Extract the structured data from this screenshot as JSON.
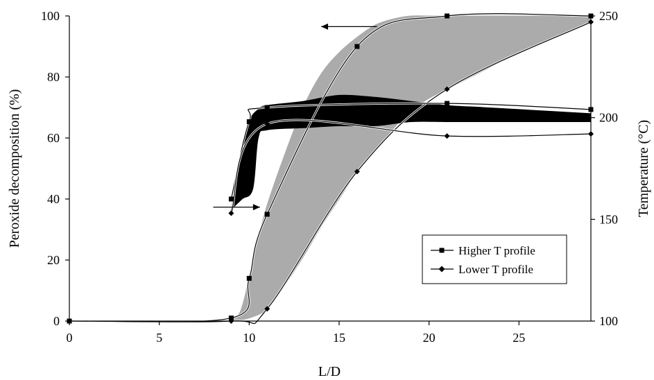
{
  "chart_data": {
    "type": "line",
    "title": "",
    "xlabel": "L/D",
    "ylabel": "Peroxide decomposition (%)",
    "y2label": "Temperature (°C)",
    "xlim": [
      0,
      29
    ],
    "ylim": [
      0,
      100
    ],
    "y2lim": [
      100,
      250
    ],
    "xticks": [
      "0",
      "5",
      "10",
      "15",
      "20",
      "25"
    ],
    "yticks": [
      "0",
      "20",
      "40",
      "60",
      "80",
      "100"
    ],
    "y2ticks": [
      "100",
      "150",
      "200",
      "250"
    ],
    "grid": false,
    "legend_position": "right-middle",
    "legend": {
      "higher": "Higher T profile",
      "lower": "Lower T profile"
    },
    "series": [
      {
        "name": "Higher T profile",
        "quantity": "peroxide decomposition",
        "axis": "left",
        "marker": "square",
        "x": [
          0,
          9,
          10,
          11,
          16,
          21,
          29
        ],
        "y": [
          0,
          1,
          14,
          35,
          90,
          100,
          100
        ]
      },
      {
        "name": "Lower T profile",
        "quantity": "peroxide decomposition",
        "axis": "left",
        "marker": "diamond",
        "x": [
          0,
          9,
          11,
          16,
          21,
          29
        ],
        "y": [
          0,
          0,
          4,
          49,
          76,
          98
        ]
      },
      {
        "name": "Higher T profile",
        "quantity": "temperature",
        "axis": "right",
        "marker": "square",
        "x": [
          9,
          10,
          11,
          21,
          29
        ],
        "y": [
          160,
          198,
          205,
          207,
          204
        ]
      },
      {
        "name": "Lower T profile",
        "quantity": "temperature",
        "axis": "right",
        "marker": "diamond",
        "x": [
          9,
          11,
          21,
          29
        ],
        "y": [
          153,
          197,
          191,
          192
        ]
      }
    ],
    "bands": [
      {
        "quantity": "peroxide decomposition",
        "axis": "left",
        "color": "#ababab",
        "upper": {
          "x": [
            9,
            9.5,
            10,
            10.5,
            11,
            12,
            13,
            14,
            15,
            16,
            17,
            18,
            19,
            20,
            21,
            23,
            25,
            27,
            29
          ],
          "y": [
            1,
            3,
            14,
            27,
            38,
            55,
            70,
            81,
            88,
            93,
            97,
            99,
            100,
            100,
            100,
            100,
            100,
            100,
            100
          ]
        },
        "lower": {
          "x": [
            9,
            10,
            11,
            12,
            13,
            14,
            15,
            16,
            17,
            18,
            19,
            20,
            21,
            23,
            25,
            27,
            29
          ],
          "y": [
            0,
            1,
            4,
            12,
            21,
            31,
            40,
            49,
            56,
            63,
            69,
            73,
            76,
            82,
            88,
            93,
            98
          ]
        }
      },
      {
        "quantity": "temperature",
        "axis": "right",
        "color": "#000000",
        "upper": {
          "x": [
            9,
            9.5,
            10,
            10.5,
            11,
            13,
            15,
            17,
            19,
            21,
            23,
            25,
            27,
            29
          ],
          "y": [
            154,
            180,
            198,
            204,
            206,
            208,
            211,
            210,
            208,
            206,
            205,
            204,
            203,
            202
          ]
        },
        "lower": {
          "x": [
            9,
            9.6,
            10.2,
            10.5,
            11,
            13,
            15,
            17,
            19,
            21,
            23,
            25,
            27,
            29
          ],
          "y": [
            155,
            160,
            165,
            190,
            194,
            195,
            196,
            196,
            198,
            198,
            198,
            198,
            198,
            198
          ]
        }
      }
    ],
    "annotations": [
      {
        "type": "arrow",
        "direction": "left",
        "axis": "left",
        "x_from": 17.1,
        "x_to": 14.0,
        "y": 96.5
      },
      {
        "type": "arrow",
        "direction": "right",
        "axis": "right",
        "x_from": 8.0,
        "x_to": 10.6,
        "y": 156
      }
    ]
  }
}
